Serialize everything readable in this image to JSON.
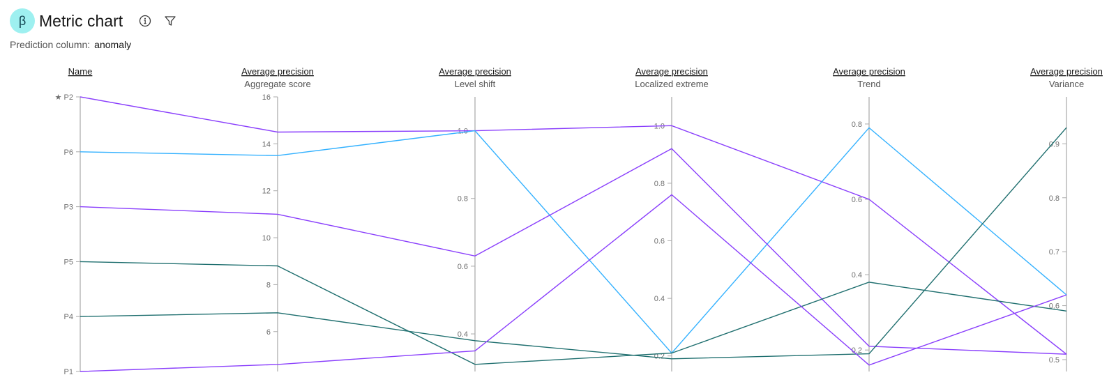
{
  "header": {
    "badge": "β",
    "title": "Metric chart",
    "prediction_label": "Prediction column:",
    "prediction_value": "anomaly",
    "info_icon": "info-icon",
    "filter_icon": "filter-icon"
  },
  "colors": {
    "purple": "#8a3ffc",
    "cyan": "#33b1ff",
    "teal": "#1f6f6f",
    "axis": "#a8a8a8"
  },
  "chart_data": {
    "type": "parallel-coordinates",
    "axes": [
      {
        "title": "Name",
        "subtitle": "",
        "kind": "categorical",
        "categories": [
          "P1",
          "P4",
          "P5",
          "P3",
          "P6",
          "★ P2"
        ]
      },
      {
        "title": "Average precision",
        "subtitle": "Aggregate score",
        "kind": "numeric",
        "range": [
          4.3,
          16
        ],
        "ticks": [
          "6",
          "8",
          "10",
          "12",
          "14",
          "16"
        ]
      },
      {
        "title": "Average precision",
        "subtitle": "Level shift",
        "kind": "numeric",
        "range": [
          0.289,
          1.1
        ],
        "ticks": [
          "0.4",
          "0.6",
          "0.8",
          "1.0"
        ]
      },
      {
        "title": "Average precision",
        "subtitle": "Localized extreme",
        "kind": "numeric",
        "range": [
          0.146,
          1.1
        ],
        "ticks": [
          "0.2",
          "0.4",
          "0.6",
          "0.8",
          "1.0"
        ]
      },
      {
        "title": "Average precision",
        "subtitle": "Trend",
        "kind": "numeric",
        "range": [
          0.143,
          0.872
        ],
        "ticks": [
          "0.2",
          "0.4",
          "0.6",
          "0.8"
        ]
      },
      {
        "title": "Average precision",
        "subtitle": "Variance",
        "kind": "numeric",
        "range": [
          0.478,
          0.987
        ],
        "ticks": [
          "0.5",
          "0.6",
          "0.7",
          "0.8",
          "0.9"
        ]
      }
    ],
    "series": [
      {
        "name": "P2",
        "color": "purple",
        "values": [
          "★ P2",
          14.5,
          1.0,
          1.0,
          0.6,
          0.51
        ]
      },
      {
        "name": "P6",
        "color": "cyan",
        "values": [
          "P6",
          13.5,
          1.0,
          0.21,
          0.79,
          0.62
        ]
      },
      {
        "name": "P3",
        "color": "purple",
        "values": [
          "P3",
          11.0,
          0.63,
          0.92,
          0.21,
          0.51
        ]
      },
      {
        "name": "P5",
        "color": "teal",
        "values": [
          "P5",
          8.8,
          0.31,
          0.21,
          0.38,
          0.59
        ]
      },
      {
        "name": "P4",
        "color": "teal",
        "values": [
          "P4",
          6.8,
          0.38,
          0.19,
          0.19,
          0.93
        ]
      },
      {
        "name": "P1",
        "color": "purple",
        "values": [
          "P1",
          4.6,
          0.35,
          0.76,
          0.16,
          0.62
        ]
      }
    ]
  }
}
